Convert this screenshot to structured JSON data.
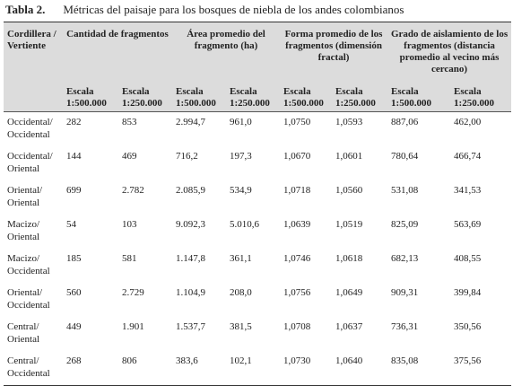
{
  "title": {
    "label": "Tabla 2.",
    "text": "Métricas del paisaje para los bosques de niebla de los andes colombianos"
  },
  "table": {
    "group_headers": [
      "Cordillera / Vertiente",
      "Cantidad de fragmentos",
      "Área promedio del fragmento (ha)",
      "Forma promedio de los fragmentos (dimensión fractal)",
      "Grado de aislamiento de los fragmentos (distancia promedio al vecino más cercano)"
    ],
    "subheaders": [
      "Escala 1:500.000",
      "Escala 1:250.000",
      "Escala 1:500.000",
      "Escala 1:250.000",
      "Escala 1:500.000",
      "Escala 1:250.000",
      "Escala 1:500.000",
      "Escala 1:250.000"
    ],
    "rows": [
      [
        "Occidental/ Occidental",
        "282",
        "853",
        "2.994,7",
        "961,0",
        "1,0750",
        "1,0593",
        "887,06",
        "462,00"
      ],
      [
        "Occidental/ Oriental",
        "144",
        "469",
        "716,2",
        "197,3",
        "1,0670",
        "1,0601",
        "780,64",
        "466,74"
      ],
      [
        "Oriental/ Oriental",
        "699",
        "2.782",
        "2.085,9",
        "534,9",
        "1,0718",
        "1,0560",
        "531,08",
        "341,53"
      ],
      [
        "Macizo/ Oriental",
        "54",
        "103",
        "9.092,3",
        "5.010,6",
        "1,0639",
        "1,0519",
        "825,09",
        "563,69"
      ],
      [
        "Macizo/ Occidental",
        "185",
        "581",
        "1.147,8",
        "361,1",
        "1,0746",
        "1,0618",
        "682,13",
        "408,55"
      ],
      [
        "Oriental/ Occidental",
        "560",
        "2.729",
        "1.104,9",
        "208,0",
        "1,0756",
        "1,0649",
        "909,31",
        "399,84"
      ],
      [
        "Central/ Oriental",
        "449",
        "1.901",
        "1.537,7",
        "381,5",
        "1,0708",
        "1,0637",
        "736,31",
        "350,56"
      ],
      [
        "Central/ Occidental",
        "268",
        "806",
        "383,6",
        "102,1",
        "1,0730",
        "1,0640",
        "835,08",
        "375,56"
      ]
    ]
  }
}
